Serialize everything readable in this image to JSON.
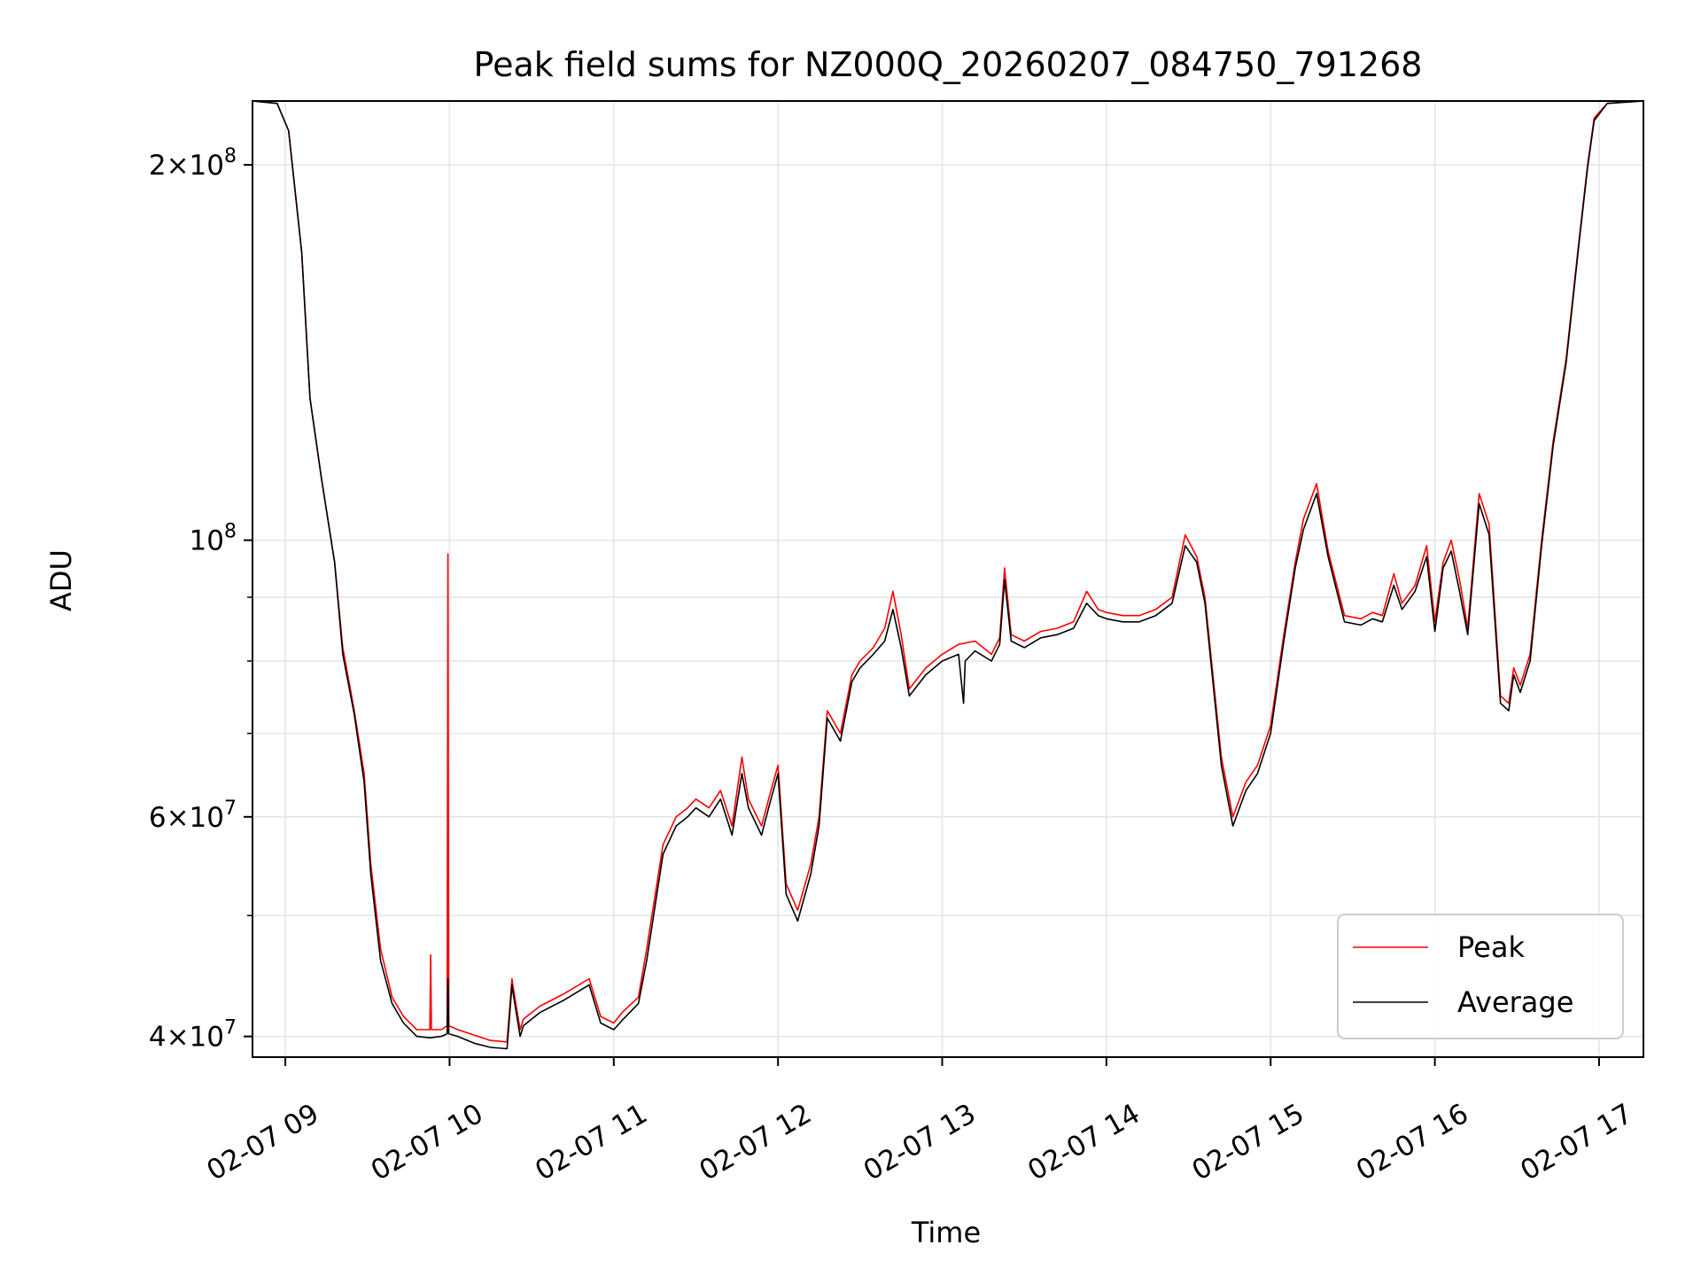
{
  "chart_data": {
    "type": "line",
    "title": "Peak field sums for NZ000Q_20260207_084750_791268",
    "xlabel": "Time",
    "ylabel": "ADU",
    "yscale": "log",
    "xlim_hours": [
      8.8,
      17.27
    ],
    "ylim": [
      38500000,
      225000000
    ],
    "grid": true,
    "legend_position": "lower-right",
    "x_tick_labels": [
      "02-07 09",
      "02-07 10",
      "02-07 11",
      "02-07 12",
      "02-07 13",
      "02-07 14",
      "02-07 15",
      "02-07 16",
      "02-07 17"
    ],
    "x_ticks_hours": [
      9,
      10,
      11,
      12,
      13,
      14,
      15,
      16,
      17
    ],
    "y_ticks": [
      {
        "value": 40000000,
        "mantissa": "4",
        "exp": "7"
      },
      {
        "value": 60000000,
        "mantissa": "6",
        "exp": "7"
      },
      {
        "value": 100000000,
        "mantissa": "",
        "exp": "8"
      },
      {
        "value": 200000000,
        "mantissa": "2",
        "exp": "8"
      }
    ],
    "y_minor_ticks": [
      50000000,
      70000000,
      80000000,
      90000000
    ],
    "series": [
      {
        "name": "Peak",
        "color": "#ff0000",
        "x_hours": [
          8.8,
          8.95,
          9.02,
          9.1,
          9.15,
          9.22,
          9.3,
          9.35,
          9.42,
          9.48,
          9.52,
          9.58,
          9.65,
          9.72,
          9.8,
          9.88,
          9.885,
          9.89,
          9.95,
          9.985,
          9.99,
          9.995,
          10.05,
          10.15,
          10.25,
          10.35,
          10.38,
          10.385,
          10.43,
          10.45,
          10.55,
          10.7,
          10.85,
          10.92,
          11.0,
          11.05,
          11.15,
          11.2,
          11.3,
          11.38,
          11.45,
          11.5,
          11.58,
          11.65,
          11.72,
          11.78,
          11.82,
          11.9,
          11.95,
          12.0,
          12.05,
          12.12,
          12.2,
          12.25,
          12.3,
          12.38,
          12.45,
          12.5,
          12.58,
          12.65,
          12.7,
          12.75,
          12.8,
          12.9,
          13.0,
          13.1,
          13.2,
          13.3,
          13.35,
          13.38,
          13.42,
          13.5,
          13.6,
          13.7,
          13.8,
          13.88,
          13.95,
          14.0,
          14.1,
          14.2,
          14.3,
          14.4,
          14.48,
          14.55,
          14.6,
          14.7,
          14.77,
          14.85,
          14.92,
          15.0,
          15.08,
          15.15,
          15.2,
          15.28,
          15.35,
          15.45,
          15.55,
          15.62,
          15.68,
          15.75,
          15.8,
          15.88,
          15.95,
          16.0,
          16.05,
          16.1,
          16.15,
          16.2,
          16.27,
          16.33,
          16.4,
          16.45,
          16.48,
          16.52,
          16.58,
          16.65,
          16.72,
          16.8,
          16.88,
          16.93,
          16.97,
          17.05,
          17.27
        ],
        "values": [
          225000000,
          224000000,
          213000000,
          170000000,
          130000000,
          112000000,
          96000000,
          82000000,
          73000000,
          65000000,
          55000000,
          47000000,
          43000000,
          41500000,
          40500000,
          40500000,
          46500000,
          40500000,
          40500000,
          40800000,
          97500000,
          40800000,
          40500000,
          40100000,
          39700000,
          39600000,
          44500000,
          44000000,
          40500000,
          41300000,
          42300000,
          43300000,
          44500000,
          41500000,
          41000000,
          41800000,
          43000000,
          47000000,
          57000000,
          60000000,
          61000000,
          62000000,
          61000000,
          63000000,
          59000000,
          67000000,
          62000000,
          59000000,
          62500000,
          66000000,
          53000000,
          50500000,
          55000000,
          60000000,
          73000000,
          70000000,
          78000000,
          80000000,
          82000000,
          85000000,
          91000000,
          84000000,
          76000000,
          79000000,
          81000000,
          82500000,
          83000000,
          81000000,
          83500000,
          95000000,
          84000000,
          83000000,
          84500000,
          85000000,
          86000000,
          91000000,
          88000000,
          87500000,
          87000000,
          87000000,
          88000000,
          90000000,
          101000000,
          97000000,
          90000000,
          67000000,
          60000000,
          64000000,
          66000000,
          71000000,
          84000000,
          96000000,
          104000000,
          111000000,
          98000000,
          87000000,
          86500000,
          87500000,
          87000000,
          94000000,
          89000000,
          92000000,
          99000000,
          86000000,
          96000000,
          100000000,
          93000000,
          85000000,
          109000000,
          103000000,
          75000000,
          74000000,
          79000000,
          76500000,
          81000000,
          100000000,
          120000000,
          140000000,
          175000000,
          200000000,
          218000000,
          224000000,
          225000000
        ]
      },
      {
        "name": "Average",
        "color": "#000000",
        "x_hours": [
          8.8,
          8.95,
          9.02,
          9.1,
          9.15,
          9.22,
          9.3,
          9.35,
          9.42,
          9.48,
          9.52,
          9.58,
          9.65,
          9.72,
          9.8,
          9.88,
          9.95,
          9.985,
          9.99,
          9.995,
          10.05,
          10.15,
          10.25,
          10.35,
          10.38,
          10.385,
          10.43,
          10.45,
          10.55,
          10.7,
          10.85,
          10.92,
          11.0,
          11.05,
          11.15,
          11.2,
          11.3,
          11.38,
          11.45,
          11.5,
          11.58,
          11.65,
          11.72,
          11.78,
          11.82,
          11.9,
          11.95,
          12.0,
          12.05,
          12.12,
          12.2,
          12.25,
          12.3,
          12.38,
          12.45,
          12.5,
          12.58,
          12.65,
          12.7,
          12.75,
          12.8,
          12.9,
          13.0,
          13.1,
          13.13,
          13.14,
          13.2,
          13.3,
          13.35,
          13.38,
          13.42,
          13.5,
          13.6,
          13.7,
          13.8,
          13.88,
          13.95,
          14.0,
          14.1,
          14.2,
          14.3,
          14.4,
          14.48,
          14.55,
          14.6,
          14.7,
          14.77,
          14.85,
          14.92,
          15.0,
          15.08,
          15.15,
          15.2,
          15.28,
          15.35,
          15.45,
          15.55,
          15.62,
          15.68,
          15.75,
          15.8,
          15.88,
          15.95,
          16.0,
          16.05,
          16.1,
          16.15,
          16.2,
          16.27,
          16.33,
          16.4,
          16.45,
          16.48,
          16.52,
          16.58,
          16.65,
          16.72,
          16.8,
          16.88,
          16.93,
          16.97,
          17.05,
          17.27
        ],
        "values": [
          225000000,
          224000000,
          213000000,
          170000000,
          130000000,
          112000000,
          96000000,
          81000000,
          72500000,
          64000000,
          54000000,
          46000000,
          42500000,
          41000000,
          40000000,
          39900000,
          40000000,
          40200000,
          44500000,
          40200000,
          40000000,
          39500000,
          39200000,
          39100000,
          44000000,
          43500000,
          40000000,
          40800000,
          41800000,
          42800000,
          44000000,
          41000000,
          40500000,
          41200000,
          42500000,
          46000000,
          56000000,
          59000000,
          60000000,
          61000000,
          60000000,
          62000000,
          58000000,
          65000000,
          61000000,
          58000000,
          61500000,
          65000000,
          52000000,
          49500000,
          54000000,
          59000000,
          72000000,
          69000000,
          77000000,
          79000000,
          81000000,
          83000000,
          88000000,
          82000000,
          75000000,
          78000000,
          80000000,
          81000000,
          74000000,
          80000000,
          81500000,
          80000000,
          82500000,
          93000000,
          83000000,
          82000000,
          83500000,
          84000000,
          85000000,
          89000000,
          87000000,
          86500000,
          86000000,
          86000000,
          87000000,
          89000000,
          99000000,
          96000000,
          89000000,
          66000000,
          59000000,
          63000000,
          65000000,
          70000000,
          83000000,
          95000000,
          102000000,
          109000000,
          97000000,
          86000000,
          85500000,
          86500000,
          86000000,
          92000000,
          88000000,
          91000000,
          97000000,
          84500000,
          95000000,
          98000000,
          91000000,
          84000000,
          107000000,
          101000000,
          74000000,
          73000000,
          78000000,
          75500000,
          80000000,
          99000000,
          119000000,
          139000000,
          174000000,
          199000000,
          217000000,
          224000000,
          225000000
        ]
      }
    ]
  }
}
